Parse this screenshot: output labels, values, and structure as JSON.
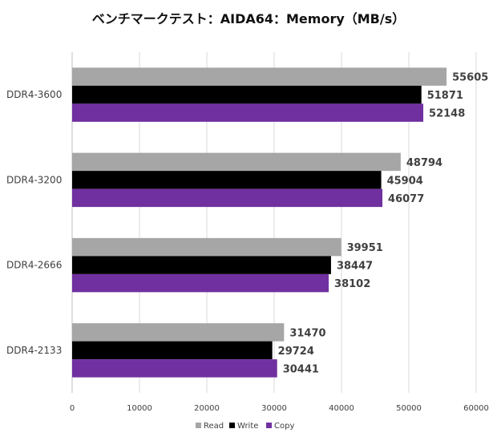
{
  "chart_data": {
    "type": "bar",
    "orientation": "horizontal",
    "title": "ベンチマークテスト：AIDA64：Memory（MB/s）",
    "categories": [
      "DDR4-3600",
      "DDR4-3200",
      "DDR4-2666",
      "DDR4-2133"
    ],
    "series": [
      {
        "name": "Read",
        "color": "#a6a6a6",
        "values": [
          55605,
          48794,
          39951,
          31470
        ]
      },
      {
        "name": "Write",
        "color": "#000000",
        "values": [
          51871,
          45904,
          38447,
          29724
        ]
      },
      {
        "name": "Copy",
        "color": "#7030a0",
        "values": [
          52148,
          46077,
          38102,
          30441
        ]
      }
    ],
    "xlim": [
      0,
      60000
    ],
    "xticks": [
      0,
      10000,
      20000,
      30000,
      40000,
      50000,
      60000
    ],
    "grid": "vertical",
    "legend": "bottom",
    "data_labels": true
  }
}
